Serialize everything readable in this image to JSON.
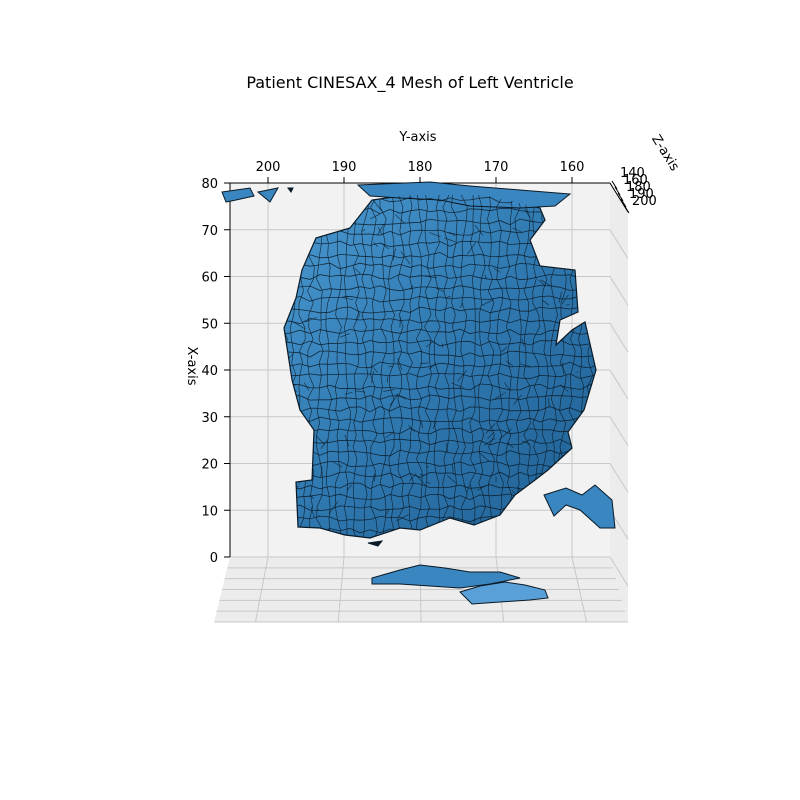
{
  "chart_data": {
    "type": "3d-surface-mesh",
    "title": "Patient CINESAX_4 Mesh of Left Ventricle",
    "xlabel": "X-axis",
    "ylabel": "Y-axis",
    "zlabel": "Z-axis",
    "x_ticks": [
      0,
      10,
      20,
      30,
      40,
      50,
      60,
      70,
      80
    ],
    "y_ticks": [
      200,
      190,
      180,
      170,
      160
    ],
    "z_ticks": [
      140,
      160,
      180,
      190,
      200
    ],
    "z_tick_labels": [
      "140",
      "160",
      "180",
      "190",
      "200"
    ],
    "xlim": [
      0,
      80
    ],
    "ylim": [
      205,
      155
    ],
    "zlim": [
      140,
      200
    ],
    "grid": true,
    "mesh_face_color": "#3a86c0",
    "mesh_edge_color": "#0a1a26",
    "pane_color": "#f2f2f2",
    "grid_color": "#c8c8c8"
  }
}
